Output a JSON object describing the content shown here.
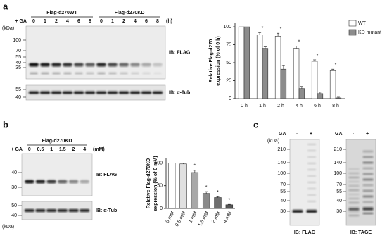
{
  "panels": {
    "a": {
      "label": "a",
      "blot": {
        "treatment": "+ GA",
        "groups": [
          "Flag-d270WT",
          "Flag-d270KD"
        ],
        "lanes": [
          "0",
          "1",
          "2",
          "4",
          "6",
          "8",
          "0",
          "1",
          "2",
          "4",
          "6",
          "8"
        ],
        "unit": "(h)",
        "kda_label": "(kDa)",
        "markers_top": [
          "100",
          "70",
          "55",
          "40",
          "35"
        ],
        "markers_bottom": [
          "55",
          "40"
        ],
        "ib_top": "IB: FLAG",
        "ib_bottom": "IB: α-Tub"
      }
    },
    "b": {
      "label": "b",
      "blot": {
        "treatment": "+ GA",
        "groups": [
          "Flag-d270KD"
        ],
        "lanes": [
          "0",
          "0.5",
          "1",
          "1.5",
          "2",
          "4"
        ],
        "unit": "(mM)",
        "kda_label": "(kDa)",
        "markers_top": [
          "40",
          "30"
        ],
        "markers_bottom": [
          "50",
          "40"
        ],
        "ib_top": "IB: FLAG",
        "ib_bottom": "IB: α-Tub"
      }
    },
    "c": {
      "label": "c",
      "blots": [
        {
          "treatment": "GA",
          "lanes": [
            "-",
            "+"
          ],
          "kda_label": "(kDa)",
          "markers": [
            "210",
            "140",
            "100",
            "70",
            "55",
            "40",
            "30"
          ],
          "ib": "IB: FLAG"
        },
        {
          "treatment": "GA",
          "lanes": [
            "-",
            "+"
          ],
          "markers": [
            "210",
            "140",
            "100",
            "70",
            "55",
            "40",
            "30"
          ],
          "ib": "IB: TAGE"
        }
      ]
    }
  },
  "chart_data": [
    {
      "type": "bar",
      "ylabel": [
        "Relative Flag-d270",
        "expression (% of 0 h)"
      ],
      "categories": [
        "0 h",
        "1 h",
        "2 h",
        "4 h",
        "6 h",
        "8 h"
      ],
      "series": [
        {
          "name": "WT",
          "color": "#ffffff",
          "values": [
            100,
            89,
            87,
            70,
            52,
            39
          ],
          "errors": [
            0,
            3,
            4,
            3,
            2,
            2
          ]
        },
        {
          "name": "KD mutant",
          "color": "#8c8c8c",
          "values": [
            100,
            70,
            41,
            14,
            7,
            1
          ],
          "errors": [
            0,
            2,
            5,
            3,
            2,
            1
          ]
        }
      ],
      "significance": [
        null,
        "*",
        "*",
        "*",
        "*",
        "*"
      ],
      "ylim": [
        0,
        105
      ],
      "yticks": [
        0,
        25,
        50,
        75,
        100
      ],
      "legend": "upper right"
    },
    {
      "type": "bar",
      "ylabel": [
        "Relative Flag-d270KD",
        "expression (% of 0 mM)"
      ],
      "categories": [
        "0 mM",
        "0.5 mM",
        "1 mM",
        "1.5 mM",
        "2 mM",
        "4 mM"
      ],
      "values": [
        100,
        98,
        79,
        33,
        24,
        8
      ],
      "errors": [
        0,
        2,
        5,
        4,
        2,
        1
      ],
      "colors": [
        "#ffffff",
        "#e0e0e0",
        "#a8a8a8",
        "#8a8a8a",
        "#6e6e6e",
        "#555555"
      ],
      "significance": [
        null,
        null,
        "*",
        "*",
        "*",
        "*"
      ],
      "ylim": [
        0,
        110
      ],
      "yticks": [
        0,
        50,
        100
      ]
    }
  ]
}
